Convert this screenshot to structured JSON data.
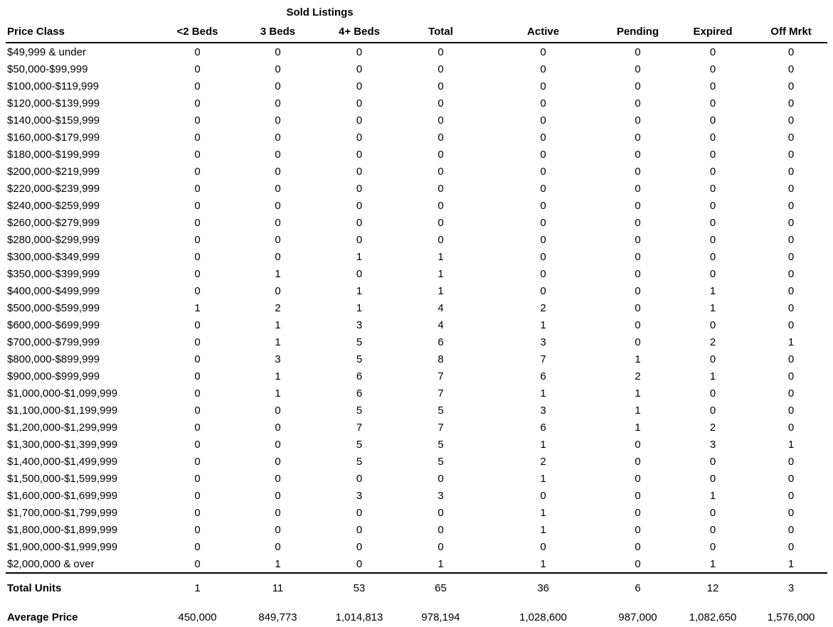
{
  "colors": {
    "background": "#ffffff",
    "text": "#000000",
    "rule": "#000000"
  },
  "table": {
    "group_header": "Sold Listings",
    "columns": [
      "Price Class",
      "<2 Beds",
      "3 Beds",
      "4+ Beds",
      "Total",
      "Active",
      "Pending",
      "Expired",
      "Off Mrkt"
    ],
    "rows": [
      {
        "price_class": "$49,999 & under",
        "values": [
          0,
          0,
          0,
          0,
          0,
          0,
          0,
          0
        ]
      },
      {
        "price_class": "$50,000-$99,999",
        "values": [
          0,
          0,
          0,
          0,
          0,
          0,
          0,
          0
        ]
      },
      {
        "price_class": "$100,000-$119,999",
        "values": [
          0,
          0,
          0,
          0,
          0,
          0,
          0,
          0
        ]
      },
      {
        "price_class": "$120,000-$139,999",
        "values": [
          0,
          0,
          0,
          0,
          0,
          0,
          0,
          0
        ]
      },
      {
        "price_class": "$140,000-$159,999",
        "values": [
          0,
          0,
          0,
          0,
          0,
          0,
          0,
          0
        ]
      },
      {
        "price_class": "$160,000-$179,999",
        "values": [
          0,
          0,
          0,
          0,
          0,
          0,
          0,
          0
        ]
      },
      {
        "price_class": "$180,000-$199,999",
        "values": [
          0,
          0,
          0,
          0,
          0,
          0,
          0,
          0
        ]
      },
      {
        "price_class": "$200,000-$219,999",
        "values": [
          0,
          0,
          0,
          0,
          0,
          0,
          0,
          0
        ]
      },
      {
        "price_class": "$220,000-$239,999",
        "values": [
          0,
          0,
          0,
          0,
          0,
          0,
          0,
          0
        ]
      },
      {
        "price_class": "$240,000-$259,999",
        "values": [
          0,
          0,
          0,
          0,
          0,
          0,
          0,
          0
        ]
      },
      {
        "price_class": "$260,000-$279,999",
        "values": [
          0,
          0,
          0,
          0,
          0,
          0,
          0,
          0
        ]
      },
      {
        "price_class": "$280,000-$299,999",
        "values": [
          0,
          0,
          0,
          0,
          0,
          0,
          0,
          0
        ]
      },
      {
        "price_class": "$300,000-$349,999",
        "values": [
          0,
          0,
          1,
          1,
          0,
          0,
          0,
          0
        ]
      },
      {
        "price_class": "$350,000-$399,999",
        "values": [
          0,
          1,
          0,
          1,
          0,
          0,
          0,
          0
        ]
      },
      {
        "price_class": "$400,000-$499,999",
        "values": [
          0,
          0,
          1,
          1,
          0,
          0,
          1,
          0
        ]
      },
      {
        "price_class": "$500,000-$599,999",
        "values": [
          1,
          2,
          1,
          4,
          2,
          0,
          1,
          0
        ]
      },
      {
        "price_class": "$600,000-$699,999",
        "values": [
          0,
          1,
          3,
          4,
          1,
          0,
          0,
          0
        ]
      },
      {
        "price_class": "$700,000-$799,999",
        "values": [
          0,
          1,
          5,
          6,
          3,
          0,
          2,
          1
        ]
      },
      {
        "price_class": "$800,000-$899,999",
        "values": [
          0,
          3,
          5,
          8,
          7,
          1,
          0,
          0
        ]
      },
      {
        "price_class": "$900,000-$999,999",
        "values": [
          0,
          1,
          6,
          7,
          6,
          2,
          1,
          0
        ]
      },
      {
        "price_class": "$1,000,000-$1,099,999",
        "values": [
          0,
          1,
          6,
          7,
          1,
          1,
          0,
          0
        ]
      },
      {
        "price_class": "$1,100,000-$1,199,999",
        "values": [
          0,
          0,
          5,
          5,
          3,
          1,
          0,
          0
        ]
      },
      {
        "price_class": "$1,200,000-$1,299,999",
        "values": [
          0,
          0,
          7,
          7,
          6,
          1,
          2,
          0
        ]
      },
      {
        "price_class": "$1,300,000-$1,399,999",
        "values": [
          0,
          0,
          5,
          5,
          1,
          0,
          3,
          1
        ]
      },
      {
        "price_class": "$1,400,000-$1,499,999",
        "values": [
          0,
          0,
          5,
          5,
          2,
          0,
          0,
          0
        ]
      },
      {
        "price_class": "$1,500,000-$1,599,999",
        "values": [
          0,
          0,
          0,
          0,
          1,
          0,
          0,
          0
        ]
      },
      {
        "price_class": "$1,600,000-$1,699,999",
        "values": [
          0,
          0,
          3,
          3,
          0,
          0,
          1,
          0
        ]
      },
      {
        "price_class": "$1,700,000-$1,799,999",
        "values": [
          0,
          0,
          0,
          0,
          1,
          0,
          0,
          0
        ]
      },
      {
        "price_class": "$1,800,000-$1,899,999",
        "values": [
          0,
          0,
          0,
          0,
          1,
          0,
          0,
          0
        ]
      },
      {
        "price_class": "$1,900,000-$1,999,999",
        "values": [
          0,
          0,
          0,
          0,
          0,
          0,
          0,
          0
        ]
      },
      {
        "price_class": "$2,000,000 & over",
        "values": [
          0,
          1,
          0,
          1,
          1,
          0,
          1,
          1
        ]
      }
    ],
    "totals": {
      "label": "Total Units",
      "values": [
        "1",
        "11",
        "53",
        "65",
        "36",
        "6",
        "12",
        "3"
      ]
    },
    "average": {
      "label": "Average Price",
      "values": [
        "450,000",
        "849,773",
        "1,014,813",
        "978,194",
        "1,028,600",
        "987,000",
        "1,082,650",
        "1,576,000"
      ]
    }
  }
}
